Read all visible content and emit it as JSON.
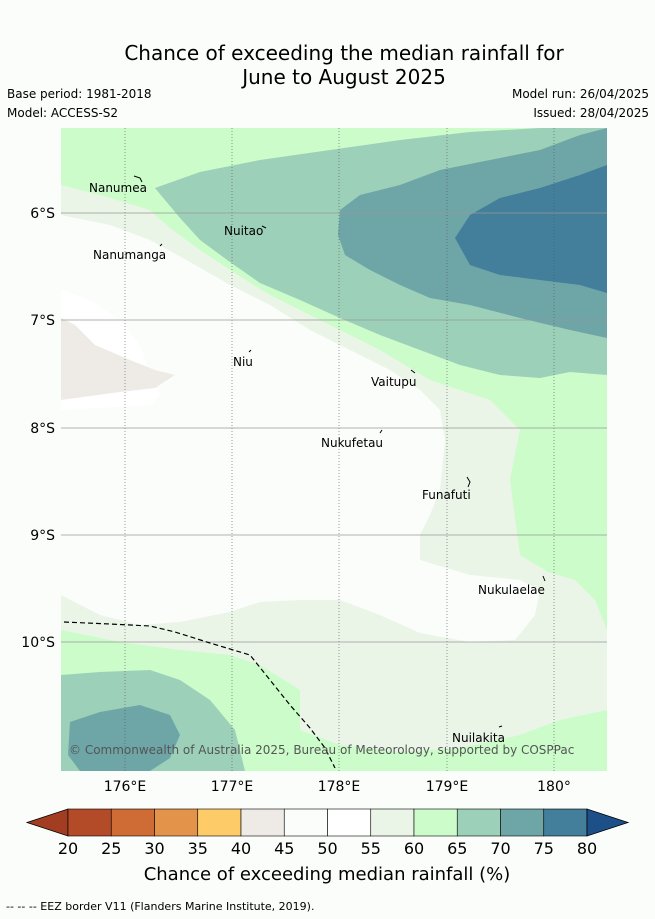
{
  "title_line1": "Chance of exceeding the median rainfall for",
  "title_line2": "June to August 2025",
  "base_period": "Base period: 1981-2018",
  "model": "Model: ACCESS-S2",
  "model_run": "Model run: 26/04/2025",
  "issued": "Issued: 28/04/2025",
  "lat_ticks": [
    "6°S",
    "7°S",
    "8°S",
    "9°S",
    "10°S"
  ],
  "lon_ticks": [
    "176°E",
    "177°E",
    "178°E",
    "179°E",
    "180°"
  ],
  "places": [
    "Nanumea",
    "Nuitao",
    "Nanumanga",
    "Niu",
    "Vaitupu",
    "Nukufetau",
    "Funafuti",
    "Nukulaelae",
    "Nuilakita"
  ],
  "copyright": "© Commonwealth of Australia 2025, Bureau of Meteorology, supported by COSPPac",
  "colorbar": {
    "ticks": [
      "20",
      "25",
      "30",
      "35",
      "40",
      "45",
      "50",
      "55",
      "60",
      "65",
      "70",
      "75",
      "80"
    ],
    "colors": [
      "#b34a28",
      "#cf6c36",
      "#e3944a",
      "#fdcb67",
      "#eeebe7",
      "#fbfdfb",
      "#ffffff",
      "#eaf5e8",
      "#cbfcca",
      "#9dd0b8",
      "#6ea5a7",
      "#437e9b"
    ],
    "under_color": "#a33d22",
    "over_color": "#1d4f88",
    "title": "Chance of exceeding median rainfall (%)"
  },
  "legend_text": "-- -- -- EEZ border V11 (Flanders Marine Institute, 2019)."
}
